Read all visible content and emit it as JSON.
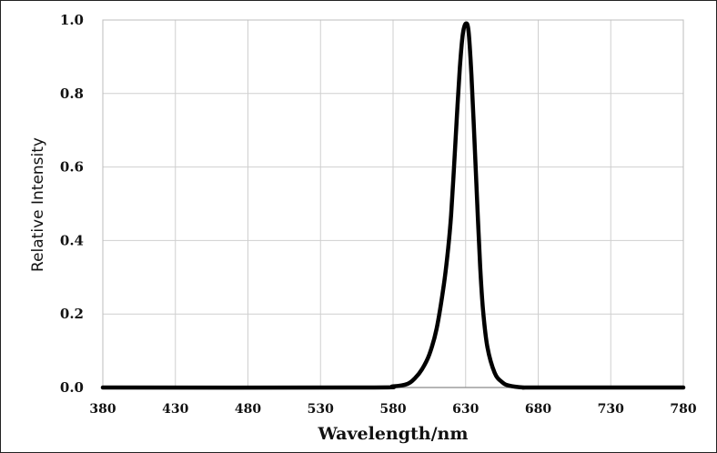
{
  "chart_data": {
    "type": "line",
    "xlabel": "Wavelength/nm",
    "ylabel": "Relative Intensity",
    "xlim": [
      380,
      780
    ],
    "ylim": [
      0,
      1.0
    ],
    "x_ticks": [
      "380",
      "430",
      "480",
      "530",
      "580",
      "630",
      "680",
      "730",
      "780"
    ],
    "y_ticks": [
      "0.0",
      "0.2",
      "0.4",
      "0.6",
      "0.8",
      "1.0"
    ],
    "grid": true,
    "series": [
      {
        "color": "#000000",
        "x": [
          380,
          560,
          580,
          590,
          595,
          600,
          605,
          610,
          615,
          618,
          620,
          622,
          624,
          626,
          628,
          630,
          632,
          634,
          636,
          638,
          640,
          642,
          645,
          650,
          655,
          660,
          670,
          680,
          780
        ],
        "y": [
          0.0,
          0.0,
          0.003,
          0.01,
          0.025,
          0.05,
          0.09,
          0.16,
          0.28,
          0.38,
          0.47,
          0.6,
          0.74,
          0.87,
          0.96,
          0.99,
          0.97,
          0.85,
          0.68,
          0.5,
          0.33,
          0.21,
          0.11,
          0.04,
          0.015,
          0.005,
          0.0,
          0.0,
          0.0
        ]
      }
    ]
  }
}
